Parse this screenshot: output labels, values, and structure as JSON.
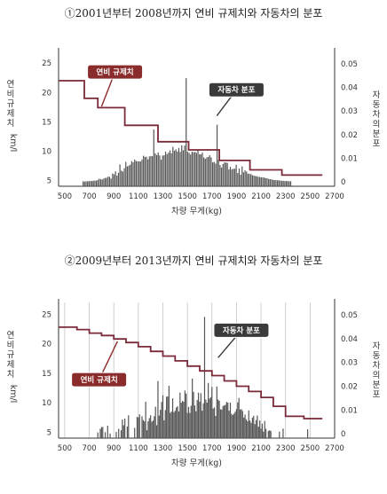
{
  "chart_data": [
    {
      "type": "line",
      "title": "①2001년부터 2008년까지 연비 규제치와 자동차의 분포",
      "xlabel": "차량 무게(kg)",
      "ylabel_left": "연비 규제치",
      "ylabel_left_unit": "km/l",
      "ylabel_right": "자동차의 분포",
      "xlim": [
        450,
        2700
      ],
      "ylim_left": [
        4,
        27
      ],
      "ylim_right": [
        -0.0018,
        0.0552
      ],
      "x_ticks": [
        500,
        700,
        900,
        1100,
        1300,
        1500,
        1700,
        1900,
        2100,
        2300,
        2500,
        2700
      ],
      "y_left_ticks": [
        5,
        10,
        15,
        20,
        25
      ],
      "y_right_ticks": [
        "0",
        "0.01",
        "0.02",
        "0.03",
        "0.04",
        "0.05"
      ],
      "grid": false,
      "series": [
        {
          "name": "연비 규제치",
          "kind": "step",
          "color": "#7a2a38",
          "points": [
            [
              450,
              22
            ],
            [
              660,
              22
            ],
            [
              660,
              19
            ],
            [
              770,
              19
            ],
            [
              770,
              17.4
            ],
            [
              990,
              17.4
            ],
            [
              990,
              14.4
            ],
            [
              1260,
              14.4
            ],
            [
              1260,
              11.6
            ],
            [
              1510,
              11.6
            ],
            [
              1510,
              10.2
            ],
            [
              1760,
              10.2
            ],
            [
              1760,
              8.4
            ],
            [
              2010,
              8.4
            ],
            [
              2010,
              6.8
            ],
            [
              2270,
              6.8
            ],
            [
              2270,
              5.9
            ],
            [
              2600,
              5.9
            ]
          ]
        },
        {
          "name": "자동차 분포",
          "kind": "bars",
          "color": "#555555",
          "x_start": 650,
          "x_step": 12,
          "values": [
            0.0003,
            0.0002,
            0.0003,
            0.0003,
            0.0004,
            0.0004,
            0.0004,
            0.0005,
            0.0006,
            0.0006,
            0.0009,
            0.0014,
            0.0011,
            0.0011,
            0.0014,
            0.0017,
            0.0018,
            0.0023,
            0.0022,
            0.0014,
            0.0036,
            0.0032,
            0.0045,
            0.0027,
            0.0039,
            0.0074,
            0.0048,
            0.0044,
            0.0058,
            0.0085,
            0.0066,
            0.0069,
            0.0073,
            0.0088,
            0.0083,
            0.0095,
            0.0089,
            0.0087,
            0.0087,
            0.0087,
            0.0095,
            0.0111,
            0.0106,
            0.0107,
            0.0096,
            0.0108,
            0.011,
            0.0109,
            0.0222,
            0.0121,
            0.0114,
            0.0125,
            0.0112,
            0.0094,
            0.0112,
            0.0113,
            0.0128,
            0.0118,
            0.0124,
            0.0134,
            0.0121,
            0.0149,
            0.0132,
            0.0138,
            0.0129,
            0.0144,
            0.0127,
            0.0155,
            0.0134,
            0.0154,
            0.0439,
            0.0128,
            0.0123,
            0.0116,
            0.0128,
            0.0126,
            0.0127,
            0.0123,
            0.0135,
            0.0117,
            0.0117,
            0.0124,
            0.0104,
            0.0098,
            0.0104,
            0.0106,
            0.0113,
            0.0104,
            0.0083,
            0.0085,
            0.0078,
            0.0242,
            0.0094,
            0.0072,
            0.0061,
            0.0076,
            0.0083,
            0.0082,
            0.0081,
            0.0053,
            0.0064,
            0.0053,
            0.0056,
            0.0056,
            0.0073,
            0.0038,
            0.0057,
            0.0031,
            0.0066,
            0.0041,
            0.0049,
            0.0044,
            0.0035,
            0.0035,
            0.0033,
            0.0029,
            0.0027,
            0.0025,
            0.0024,
            0.0022,
            0.0021,
            0.002,
            0.0019,
            0.0019,
            0.0016,
            0.0016,
            0.0013,
            0.0012,
            0.0011,
            0.0009,
            0.0008,
            0.0008,
            0.0007,
            0.0007,
            0.0006,
            0.0005,
            0.0005,
            0.0004,
            0.0004,
            0.0004,
            0.0003,
            0.0003
          ]
        }
      ],
      "annotations": [
        {
          "label": "연비 규제치",
          "color": "#8b2c2c",
          "box_at": [
            910,
            23.5
          ],
          "arrow_to": [
            800,
            17.6
          ]
        },
        {
          "label": "자동차 분포",
          "color": "#3a3a3a",
          "box_at": [
            1900,
            0.039
          ],
          "arrow_to": [
            1740,
            0.028
          ]
        }
      ]
    },
    {
      "type": "line",
      "title": "②2009년부터 2013년까지 연비 규제치와 자동차의 분포",
      "xlabel": "차량 무게(kg)",
      "ylabel_left": "연비 규제치",
      "ylabel_left_unit": "km/l",
      "ylabel_right": "자동차의 분포",
      "xlim": [
        450,
        2700
      ],
      "ylim_left": [
        4,
        27
      ],
      "ylim_right": [
        -0.0018,
        0.0552
      ],
      "x_ticks": [
        500,
        700,
        900,
        1100,
        1300,
        1500,
        1700,
        1900,
        2100,
        2300,
        2500,
        2700
      ],
      "y_left_ticks": [
        5,
        10,
        15,
        20,
        25
      ],
      "y_right_ticks": [
        "0",
        "0.01",
        "0.02",
        "0.03",
        "0.04",
        "0.05"
      ],
      "grid": true,
      "series": [
        {
          "name": "연비 규제치",
          "kind": "step",
          "color": "#7a2a38",
          "points": [
            [
              450,
              22.8
            ],
            [
              600,
              22.8
            ],
            [
              600,
              22.4
            ],
            [
              700,
              22.4
            ],
            [
              700,
              21.8
            ],
            [
              800,
              21.8
            ],
            [
              800,
              21.4
            ],
            [
              900,
              21.4
            ],
            [
              900,
              20.8
            ],
            [
              1000,
              20.8
            ],
            [
              1000,
              20.2
            ],
            [
              1100,
              20.2
            ],
            [
              1100,
              19.5
            ],
            [
              1200,
              19.5
            ],
            [
              1200,
              18.7
            ],
            [
              1300,
              18.7
            ],
            [
              1300,
              17.9
            ],
            [
              1400,
              17.9
            ],
            [
              1400,
              17.1
            ],
            [
              1500,
              17.1
            ],
            [
              1500,
              16.2
            ],
            [
              1600,
              16.2
            ],
            [
              1600,
              15.4
            ],
            [
              1700,
              15.4
            ],
            [
              1700,
              14.6
            ],
            [
              1800,
              14.6
            ],
            [
              1800,
              13.7
            ],
            [
              1900,
              13.7
            ],
            [
              1900,
              12.8
            ],
            [
              2000,
              12.8
            ],
            [
              2000,
              11.9
            ],
            [
              2100,
              11.9
            ],
            [
              2100,
              10.9
            ],
            [
              2200,
              10.9
            ],
            [
              2200,
              9.4
            ],
            [
              2300,
              9.4
            ],
            [
              2300,
              7.7
            ],
            [
              2450,
              7.7
            ],
            [
              2450,
              7.3
            ],
            [
              2600,
              7.3
            ]
          ]
        },
        {
          "name": "자동차 분포",
          "kind": "bars",
          "color": "#555555",
          "x_start": 760,
          "x_step": 10,
          "values": [
            0.0,
            0.0006,
            0.0,
            0.0021,
            0.0028,
            0.0029,
            0.0,
            0.0007,
            0.0,
            0.0034,
            0.0,
            0.0001,
            0.0,
            0.0,
            0.0,
            0.0,
            0.0008,
            0.0,
            0.0021,
            0.0,
            0.0015,
            0.006,
            0.0036,
            0.0064,
            0.0,
            0.0031,
            0.0078,
            0.0,
            0.0,
            0.0,
            0.0,
            0.0025,
            0.0,
            0.0071,
            0.0069,
            0.0082,
            0.0,
            0.0074,
            0.0058,
            0.0052,
            0.0135,
            0.0015,
            0.0053,
            0.0066,
            0.0078,
            0.0051,
            0.0056,
            0.0074,
            0.0114,
            0.0036,
            0.0222,
            0.0077,
            0.0101,
            0.0134,
            0.0162,
            0.0057,
            0.01,
            0.0156,
            0.0157,
            0.0202,
            0.0088,
            0.0094,
            0.0149,
            0.0091,
            0.0097,
            0.0111,
            0.0116,
            0.0094,
            0.0173,
            0.0131,
            0.0138,
            0.0135,
            0.0182,
            0.0169,
            0.0088,
            0.0113,
            0.0088,
            0.0118,
            0.0232,
            0.0176,
            0.0119,
            0.0095,
            0.0142,
            0.0173,
            0.0135,
            0.0171,
            0.0097,
            0.0128,
            0.0491,
            0.0144,
            0.0131,
            0.0214,
            0.0148,
            0.0154,
            0.0197,
            0.0106,
            0.0111,
            0.0075,
            0.0199,
            0.0144,
            0.0139,
            0.0103,
            0.0102,
            0.0117,
            0.0119,
            0.0122,
            0.0134,
            0.0131,
            0.0097,
            0.0131,
            0.0084,
            0.0079,
            0.0085,
            0.0093,
            0.0104,
            0.0132,
            0.0151,
            0.0102,
            0.0104,
            0.0096,
            0.0068,
            0.0081,
            0.0061,
            0.0053,
            0.0098,
            0.0056,
            0.0046,
            0.0068,
            0.0076,
            0.0041,
            0.0058,
            0.0077,
            0.003,
            0.0056,
            0.0022,
            0.0043,
            0.0009,
            0.0054,
            0.0021,
            0.0,
            0.0012,
            0.0015,
            0.0012,
            0.0,
            0.0,
            0.0,
            0.0,
            0.0,
            0.0,
            0.0009,
            0.0,
            0.0,
            0.0022,
            0.0,
            0.0,
            0.0,
            0.0,
            0.0,
            0.0,
            0.0,
            0.0,
            0.0,
            0.0,
            0.0,
            0.0,
            0.0,
            0.0,
            0.0,
            0.0,
            0.0,
            0.0,
            0.0,
            0.0019,
            0.0,
            0.0,
            0.0,
            0.0,
            0.0,
            0.0,
            0.0,
            0.0,
            0.0,
            0.0,
            0.0,
            0.0,
            0.0,
            0.0,
            0.0
          ]
        }
      ],
      "annotations": [
        {
          "label": "연비 규제치",
          "color": "#8b2c2c",
          "box_at": [
            780,
            13.9
          ],
          "arrow_to": [
            930,
            20.4
          ]
        },
        {
          "label": "자동차 분포",
          "color": "#3a3a3a",
          "box_at": [
            1940,
            0.0435
          ],
          "arrow_to": [
            1750,
            0.032
          ]
        }
      ]
    }
  ]
}
